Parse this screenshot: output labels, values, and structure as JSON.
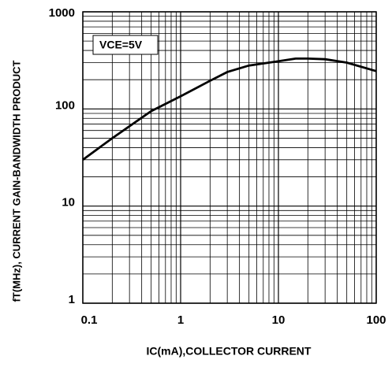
{
  "chart_data": {
    "type": "line",
    "annotation": "VCE=5V",
    "xlabel": "IC(mA),COLLECTOR CURRENT",
    "ylabel": "fT(MHz), CURRENT GAIN-BANDWIDTH PRODUCT",
    "x": [
      0.1,
      0.2,
      0.5,
      1,
      2,
      3,
      5,
      10,
      15,
      20,
      30,
      50,
      100
    ],
    "series": [
      {
        "name": "VCE=5V",
        "color": "#000000",
        "values": [
          30,
          50,
          95,
          135,
          195,
          240,
          280,
          310,
          330,
          330,
          325,
          300,
          245
        ]
      }
    ],
    "xlim": [
      0.1,
      100
    ],
    "ylim": [
      1,
      1000
    ],
    "xticks": [
      0.1,
      1,
      10,
      100
    ],
    "yticks": [
      1,
      10,
      100,
      1000
    ],
    "xscale": "log",
    "yscale": "log",
    "grid": true,
    "minor_grid": true
  }
}
